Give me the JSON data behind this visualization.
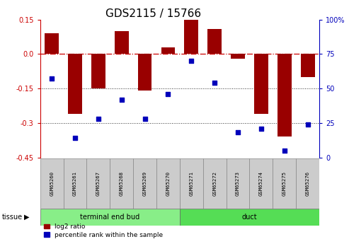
{
  "title": "GDS2115 / 15766",
  "samples": [
    "GSM65260",
    "GSM65261",
    "GSM65267",
    "GSM65268",
    "GSM65269",
    "GSM65270",
    "GSM65271",
    "GSM65272",
    "GSM65273",
    "GSM65274",
    "GSM65275",
    "GSM65276"
  ],
  "log2_ratio": [
    0.09,
    -0.26,
    -0.15,
    0.1,
    -0.16,
    0.03,
    0.15,
    0.11,
    -0.02,
    -0.26,
    -0.36,
    -0.1
  ],
  "percentile": [
    57,
    14,
    28,
    42,
    28,
    46,
    70,
    54,
    18,
    21,
    5,
    24
  ],
  "tissue_groups": [
    {
      "label": "terminal end bud",
      "start": 0,
      "end": 6,
      "color": "#88EE88"
    },
    {
      "label": "duct",
      "start": 6,
      "end": 12,
      "color": "#55DD55"
    }
  ],
  "bar_color": "#990000",
  "dot_color": "#0000BB",
  "ylim_left": [
    -0.45,
    0.15
  ],
  "ylim_right": [
    0,
    100
  ],
  "yticks_left": [
    0.15,
    0.0,
    -0.15,
    -0.3,
    -0.45
  ],
  "yticks_right": [
    100,
    75,
    50,
    25,
    0
  ],
  "hline_0_color": "#CC0000",
  "hline_minus015_color": "#333333",
  "hline_minus030_color": "#333333",
  "title_fontsize": 11,
  "legend_label_red": "log2 ratio",
  "legend_label_blue": "percentile rank within the sample",
  "tissue_label": "tissue",
  "tick_fontsize": 7,
  "bar_width": 0.6
}
